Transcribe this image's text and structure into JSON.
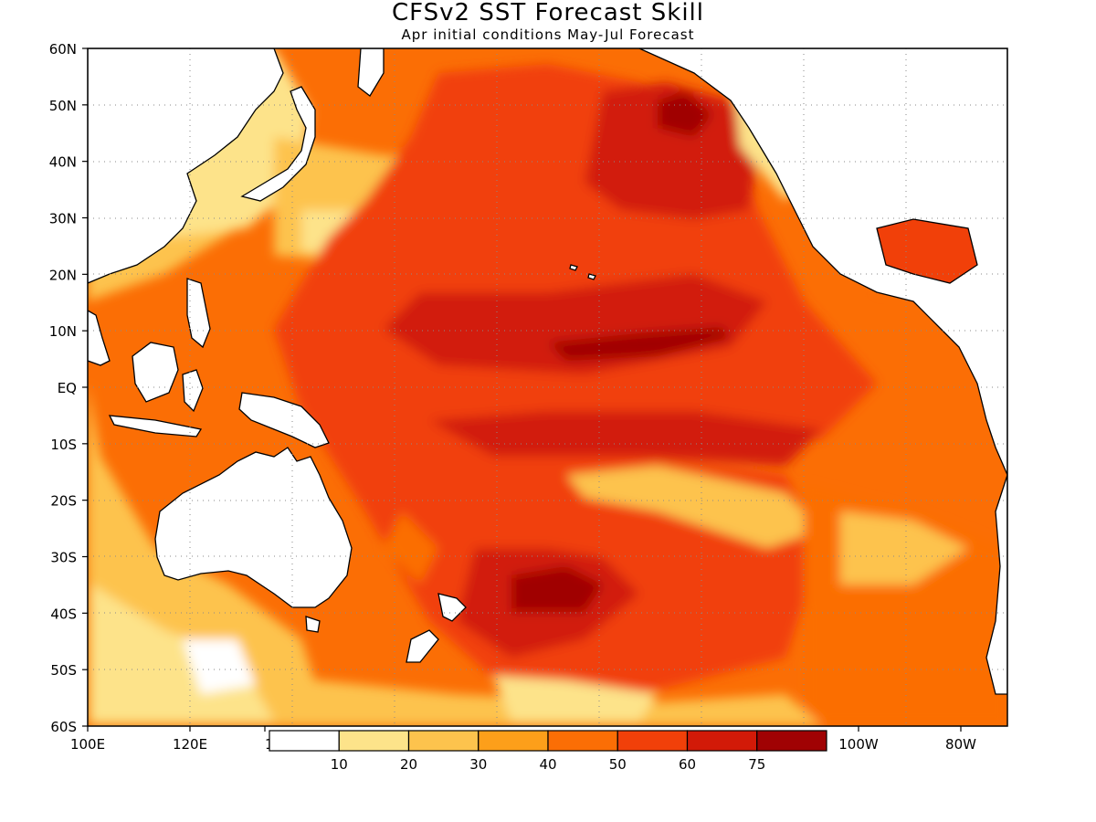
{
  "title": "CFSv2 SST Forecast Skill",
  "subtitle": "Apr initial conditions   May-Jul Forecast",
  "map": {
    "lat_labels": [
      "60N",
      "50N",
      "40N",
      "30N",
      "20N",
      "10N",
      "EQ",
      "10S",
      "20S",
      "30S",
      "40S",
      "50S",
      "60S"
    ],
    "lon_labels": [
      "100E",
      "120E",
      "1",
      "100W",
      "80W"
    ],
    "colors": {
      "land": "#ffffff",
      "frame": "#000000",
      "grid": "#8a8a8a"
    }
  },
  "colorbar": {
    "levels": [
      "10",
      "20",
      "30",
      "40",
      "50",
      "60",
      "75"
    ],
    "colors": [
      "#ffffff",
      "#fde38a",
      "#fdc34d",
      "#fd9f1a",
      "#fb6e05",
      "#f14009",
      "#d21a08",
      "#a00203"
    ]
  }
}
